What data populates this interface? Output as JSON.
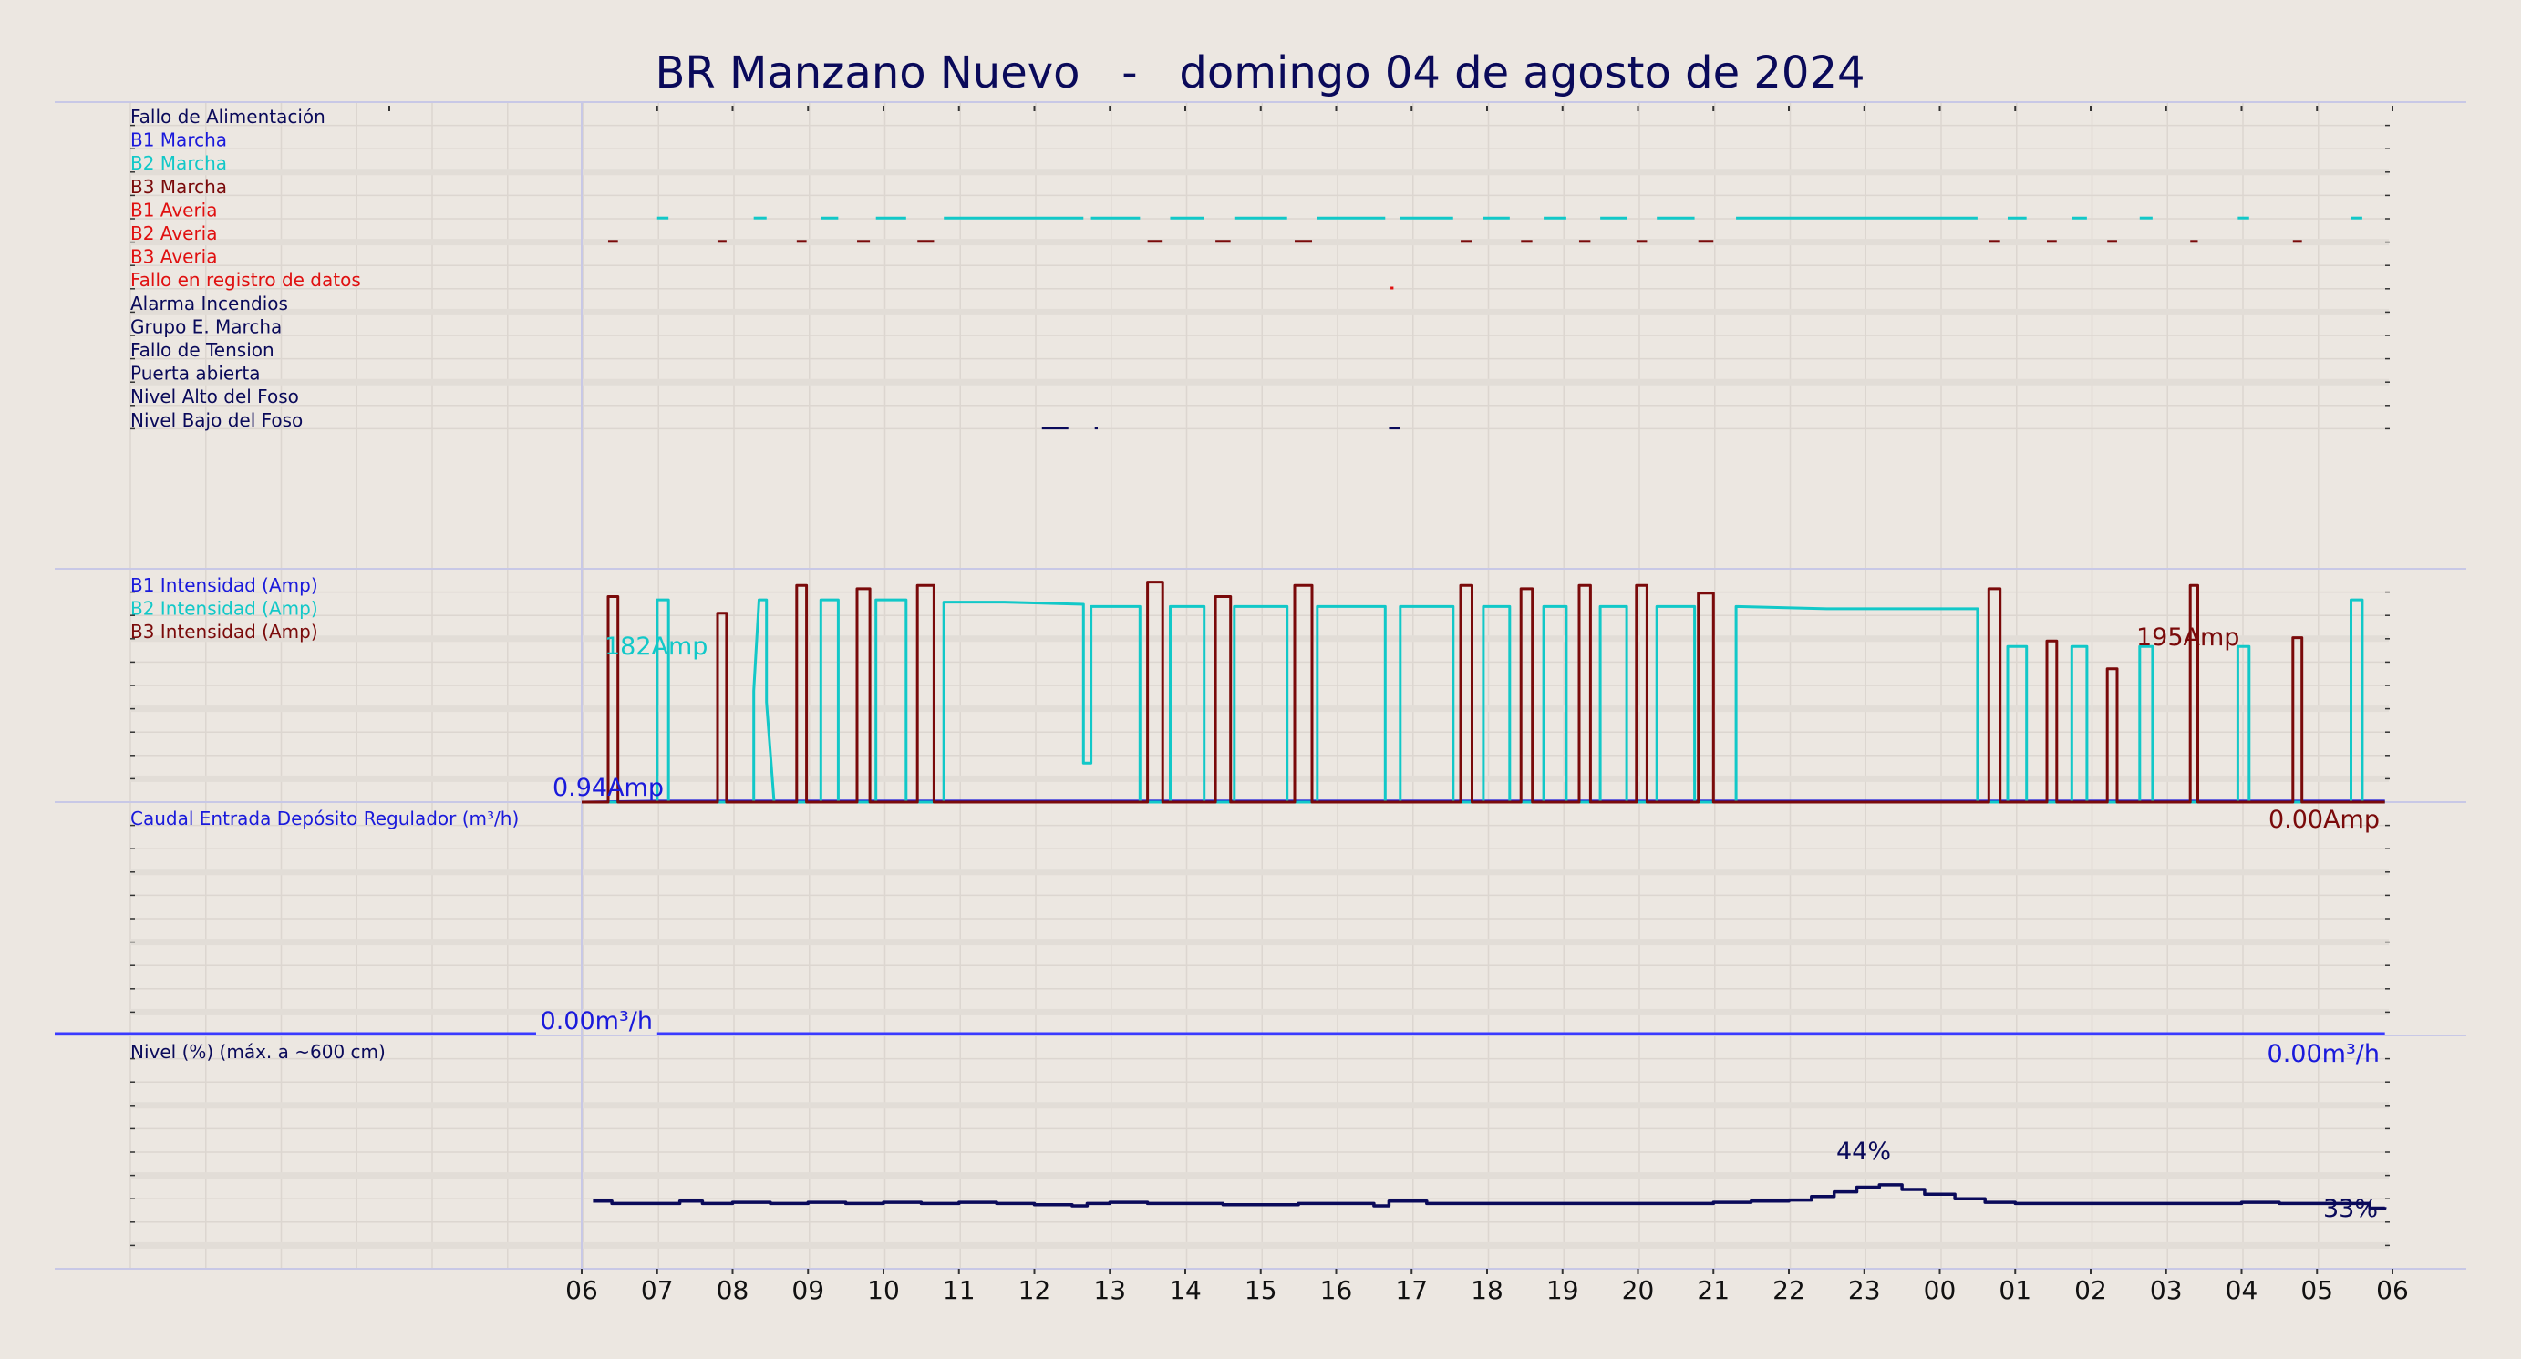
{
  "colors": {
    "background": "#ece7e1",
    "navy": "#0a0a5a",
    "blue": "#1a1adb",
    "cyan": "#12c8c8",
    "maroon": "#7a0a0a",
    "red": "#e01010",
    "grid": "#dcd6d0",
    "band": "#e2ddd7",
    "divider": "#c8c8e6",
    "flow_line": "#3a3aff"
  },
  "title": "BR Manzano Nuevo   -   domingo 04 de agosto de 2024",
  "x_axis": {
    "type": "hour",
    "start_hour": 6,
    "tick_labels": [
      "06",
      "07",
      "08",
      "09",
      "10",
      "11",
      "12",
      "13",
      "14",
      "15",
      "16",
      "17",
      "18",
      "19",
      "20",
      "21",
      "22",
      "23",
      "00",
      "01",
      "02",
      "03",
      "04",
      "05",
      "06"
    ]
  },
  "panels": {
    "status": {
      "labels": [
        {
          "text": "Fallo de Alimentación",
          "color": "navy"
        },
        {
          "text": "B1 Marcha",
          "color": "blue"
        },
        {
          "text": "B2 Marcha",
          "color": "cyan"
        },
        {
          "text": "B3 Marcha",
          "color": "maroon"
        },
        {
          "text": "B1 Averia",
          "color": "red"
        },
        {
          "text": "B2 Averia",
          "color": "red"
        },
        {
          "text": "B3 Averia",
          "color": "red"
        },
        {
          "text": "Fallo en registro de datos",
          "color": "red"
        },
        {
          "text": "Alarma Incendios",
          "color": "navy"
        },
        {
          "text": "Grupo E. Marcha",
          "color": "navy"
        },
        {
          "text": "Fallo de Tension",
          "color": "navy"
        },
        {
          "text": "Puerta abierta",
          "color": "navy"
        },
        {
          "text": "Nivel Alto del Foso",
          "color": "navy"
        },
        {
          "text": "Nivel Bajo del Foso",
          "color": "navy"
        }
      ]
    },
    "current": {
      "labels": [
        {
          "text": "B1 Intensidad (Amp)",
          "color": "blue"
        },
        {
          "text": "B2 Intensidad (Amp)",
          "color": "cyan"
        },
        {
          "text": "B3 Intensidad (Amp)",
          "color": "maroon"
        }
      ],
      "annotations": [
        {
          "text": "182Amp",
          "color": "cyan",
          "x": 7.0,
          "y": 182
        },
        {
          "text": "195Amp",
          "color": "maroon",
          "x": 27.3,
          "y": 195
        },
        {
          "text": "0.94Amp",
          "color": "blue",
          "x": 7.0,
          "y": 0.94
        },
        {
          "text": "0.00Amp",
          "color": "maroon",
          "x": 29.8,
          "y": 0
        }
      ]
    },
    "flow": {
      "labels": [
        {
          "text": "Caudal Entrada Depósito Regulador (m³/h)",
          "color": "blue"
        }
      ],
      "annotations": [
        {
          "text": "0.00m³/h",
          "color": "blue",
          "x": 7.0,
          "y": 0
        },
        {
          "text": "0.00m³/h",
          "color": "blue",
          "x": 29.8,
          "y": 0
        }
      ]
    },
    "level": {
      "labels": [
        {
          "text": "Nivel (%) (máx. a ~600 cm)",
          "color": "navy"
        }
      ],
      "annotations": [
        {
          "text": "44%",
          "color": "navy",
          "x": 22.8,
          "y": 44
        },
        {
          "text": "33%",
          "color": "navy",
          "x": 29.7,
          "y": 33
        }
      ]
    }
  },
  "chart_data": {
    "type": "line",
    "x_unit": "hour of day (continuous from 06:00 Sunday to 06:00 Monday; values above 24 are the next day)",
    "status_events": {
      "B2 Marcha": [
        [
          7.0,
          7.15
        ],
        [
          8.28,
          8.45
        ],
        [
          9.17,
          9.4
        ],
        [
          9.9,
          10.3
        ],
        [
          10.8,
          12.65
        ],
        [
          12.75,
          13.4
        ],
        [
          13.8,
          14.25
        ],
        [
          14.65,
          15.35
        ],
        [
          15.75,
          16.65
        ],
        [
          16.85,
          17.55
        ],
        [
          17.95,
          18.3
        ],
        [
          18.75,
          19.05
        ],
        [
          19.5,
          19.85
        ],
        [
          20.25,
          20.75
        ],
        [
          21.3,
          24.5
        ],
        [
          24.9,
          25.15
        ],
        [
          25.75,
          25.95
        ],
        [
          26.65,
          26.82
        ],
        [
          27.95,
          28.1
        ],
        [
          29.45,
          29.6
        ]
      ],
      "B3 Marcha": [
        [
          6.35,
          6.48
        ],
        [
          7.8,
          7.92
        ],
        [
          8.85,
          8.98
        ],
        [
          9.65,
          9.82
        ],
        [
          10.45,
          10.67
        ],
        [
          13.5,
          13.7
        ],
        [
          14.4,
          14.6
        ],
        [
          15.45,
          15.68
        ],
        [
          17.65,
          17.8
        ],
        [
          18.45,
          18.6
        ],
        [
          19.22,
          19.37
        ],
        [
          19.98,
          20.12
        ],
        [
          20.8,
          21.0
        ],
        [
          24.65,
          24.8
        ],
        [
          25.42,
          25.55
        ],
        [
          26.22,
          26.35
        ],
        [
          27.32,
          27.42
        ],
        [
          28.68,
          28.8
        ]
      ],
      "B2 Averia": [
        [
          16.72,
          16.76
        ]
      ],
      "Puerta abierta": [
        [
          12.1,
          12.45
        ],
        [
          12.8,
          12.84
        ],
        [
          16.7,
          16.85
        ]
      ]
    },
    "current_b2": [
      [
        6,
        0
      ],
      [
        7.0,
        0
      ],
      [
        7.0,
        182
      ],
      [
        7.15,
        182
      ],
      [
        7.15,
        0
      ],
      [
        8.28,
        0
      ],
      [
        8.28,
        100
      ],
      [
        8.35,
        182
      ],
      [
        8.45,
        182
      ],
      [
        8.45,
        90
      ],
      [
        8.55,
        0
      ],
      [
        9.17,
        0
      ],
      [
        9.17,
        182
      ],
      [
        9.4,
        182
      ],
      [
        9.4,
        0
      ],
      [
        9.9,
        0
      ],
      [
        9.9,
        182
      ],
      [
        10.3,
        182
      ],
      [
        10.3,
        0
      ],
      [
        10.8,
        0
      ],
      [
        10.8,
        180
      ],
      [
        11.6,
        180
      ],
      [
        12.65,
        178
      ],
      [
        12.65,
        35
      ],
      [
        12.75,
        35
      ],
      [
        12.75,
        176
      ],
      [
        13.4,
        176
      ],
      [
        13.4,
        0
      ],
      [
        13.8,
        0
      ],
      [
        13.8,
        176
      ],
      [
        14.25,
        176
      ],
      [
        14.25,
        0
      ],
      [
        14.65,
        0
      ],
      [
        14.65,
        176
      ],
      [
        15.35,
        176
      ],
      [
        15.35,
        0
      ],
      [
        15.75,
        0
      ],
      [
        15.75,
        176
      ],
      [
        16.65,
        176
      ],
      [
        16.65,
        0
      ],
      [
        16.85,
        0
      ],
      [
        16.85,
        176
      ],
      [
        17.55,
        176
      ],
      [
        17.55,
        0
      ],
      [
        17.95,
        0
      ],
      [
        17.95,
        176
      ],
      [
        18.3,
        176
      ],
      [
        18.3,
        0
      ],
      [
        18.75,
        0
      ],
      [
        18.75,
        176
      ],
      [
        19.05,
        176
      ],
      [
        19.05,
        0
      ],
      [
        19.5,
        0
      ],
      [
        19.5,
        176
      ],
      [
        19.85,
        176
      ],
      [
        19.85,
        0
      ],
      [
        20.25,
        0
      ],
      [
        20.25,
        176
      ],
      [
        20.75,
        176
      ],
      [
        20.75,
        0
      ],
      [
        21.3,
        0
      ],
      [
        21.3,
        176
      ],
      [
        22.5,
        174
      ],
      [
        24.5,
        174
      ],
      [
        24.5,
        0
      ],
      [
        24.9,
        0
      ],
      [
        24.9,
        140
      ],
      [
        25.15,
        140
      ],
      [
        25.15,
        0
      ],
      [
        25.75,
        0
      ],
      [
        25.75,
        140
      ],
      [
        25.95,
        140
      ],
      [
        25.95,
        0
      ],
      [
        26.65,
        0
      ],
      [
        26.65,
        140
      ],
      [
        26.82,
        140
      ],
      [
        26.82,
        0
      ],
      [
        27.95,
        0
      ],
      [
        27.95,
        140
      ],
      [
        28.1,
        140
      ],
      [
        28.1,
        0
      ],
      [
        29.45,
        0
      ],
      [
        29.45,
        182
      ],
      [
        29.6,
        182
      ],
      [
        29.6,
        0
      ],
      [
        29.9,
        0
      ]
    ],
    "current_b3": [
      [
        6,
        0
      ],
      [
        6.35,
        0
      ],
      [
        6.35,
        185
      ],
      [
        6.48,
        185
      ],
      [
        6.48,
        0
      ],
      [
        7.8,
        0
      ],
      [
        7.8,
        170
      ],
      [
        7.92,
        170
      ],
      [
        7.92,
        0
      ],
      [
        8.85,
        0
      ],
      [
        8.85,
        195
      ],
      [
        8.98,
        195
      ],
      [
        8.98,
        0
      ],
      [
        9.65,
        0
      ],
      [
        9.65,
        192
      ],
      [
        9.82,
        192
      ],
      [
        9.82,
        0
      ],
      [
        10.45,
        0
      ],
      [
        10.45,
        195
      ],
      [
        10.67,
        195
      ],
      [
        10.67,
        0
      ],
      [
        13.5,
        0
      ],
      [
        13.5,
        198
      ],
      [
        13.7,
        198
      ],
      [
        13.7,
        0
      ],
      [
        14.4,
        0
      ],
      [
        14.4,
        185
      ],
      [
        14.6,
        185
      ],
      [
        14.6,
        0
      ],
      [
        15.45,
        0
      ],
      [
        15.45,
        195
      ],
      [
        15.68,
        195
      ],
      [
        15.68,
        0
      ],
      [
        17.65,
        0
      ],
      [
        17.65,
        195
      ],
      [
        17.8,
        195
      ],
      [
        17.8,
        0
      ],
      [
        18.45,
        0
      ],
      [
        18.45,
        192
      ],
      [
        18.6,
        192
      ],
      [
        18.6,
        0
      ],
      [
        19.22,
        0
      ],
      [
        19.22,
        195
      ],
      [
        19.37,
        195
      ],
      [
        19.37,
        0
      ],
      [
        19.98,
        0
      ],
      [
        19.98,
        195
      ],
      [
        20.12,
        195
      ],
      [
        20.12,
        0
      ],
      [
        20.8,
        0
      ],
      [
        20.8,
        188
      ],
      [
        21.0,
        188
      ],
      [
        21.0,
        0
      ],
      [
        24.65,
        0
      ],
      [
        24.65,
        192
      ],
      [
        24.8,
        192
      ],
      [
        24.8,
        0
      ],
      [
        25.42,
        0
      ],
      [
        25.42,
        145
      ],
      [
        25.55,
        145
      ],
      [
        25.55,
        0
      ],
      [
        26.22,
        0
      ],
      [
        26.22,
        120
      ],
      [
        26.35,
        120
      ],
      [
        26.35,
        0
      ],
      [
        27.32,
        0
      ],
      [
        27.32,
        195
      ],
      [
        27.42,
        195
      ],
      [
        27.42,
        0
      ],
      [
        28.68,
        0
      ],
      [
        28.68,
        148
      ],
      [
        28.8,
        148
      ],
      [
        28.8,
        0
      ],
      [
        29.9,
        0
      ]
    ],
    "current_b1": [
      [
        6,
        0
      ],
      [
        7.0,
        0.94
      ],
      [
        29.9,
        0.94
      ]
    ],
    "flow_m3h": [
      [
        6,
        0
      ],
      [
        7.0,
        0
      ],
      [
        29.9,
        0
      ]
    ],
    "level_pct": [
      [
        6.15,
        36
      ],
      [
        6.4,
        35
      ],
      [
        6.8,
        35
      ],
      [
        7.3,
        36
      ],
      [
        7.6,
        35
      ],
      [
        8.0,
        35.5
      ],
      [
        8.5,
        35
      ],
      [
        9.0,
        35.5
      ],
      [
        9.5,
        35
      ],
      [
        10.0,
        35.5
      ],
      [
        10.5,
        35
      ],
      [
        11.0,
        35.5
      ],
      [
        11.5,
        35
      ],
      [
        12.0,
        34.5
      ],
      [
        12.5,
        34
      ],
      [
        12.7,
        35
      ],
      [
        13.0,
        35.5
      ],
      [
        13.5,
        35
      ],
      [
        14.0,
        35
      ],
      [
        14.5,
        34.5
      ],
      [
        15.0,
        34.5
      ],
      [
        15.5,
        35
      ],
      [
        16.0,
        35
      ],
      [
        16.5,
        34
      ],
      [
        16.7,
        36
      ],
      [
        16.9,
        36
      ],
      [
        17.2,
        35
      ],
      [
        17.6,
        35
      ],
      [
        18.0,
        35
      ],
      [
        18.5,
        35
      ],
      [
        19.0,
        35
      ],
      [
        19.5,
        35
      ],
      [
        20.0,
        35
      ],
      [
        20.5,
        35
      ],
      [
        21.0,
        35.5
      ],
      [
        21.5,
        36
      ],
      [
        22.0,
        36.5
      ],
      [
        22.3,
        38
      ],
      [
        22.6,
        40
      ],
      [
        22.9,
        42
      ],
      [
        23.2,
        43
      ],
      [
        23.5,
        41
      ],
      [
        23.8,
        39
      ],
      [
        24.2,
        37
      ],
      [
        24.6,
        35.5
      ],
      [
        25.0,
        35
      ],
      [
        25.5,
        35
      ],
      [
        26.0,
        35
      ],
      [
        26.5,
        35
      ],
      [
        27.0,
        35
      ],
      [
        27.5,
        35
      ],
      [
        28.0,
        35.5
      ],
      [
        28.5,
        35
      ],
      [
        29.0,
        35
      ],
      [
        29.5,
        35
      ],
      [
        29.7,
        33
      ],
      [
        29.9,
        33.5
      ]
    ],
    "ylim": {
      "status_rows": 15,
      "current": [
        0,
        210
      ],
      "flow": [
        0,
        100
      ],
      "level": [
        0,
        100
      ]
    }
  }
}
